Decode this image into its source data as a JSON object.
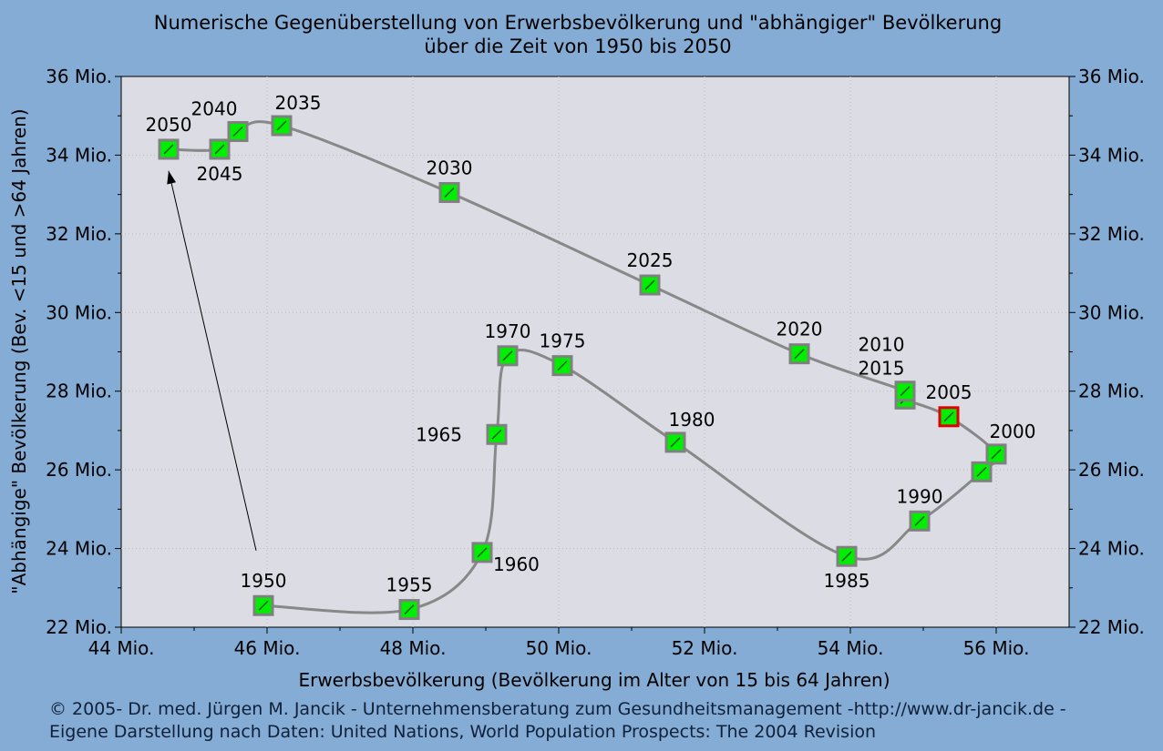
{
  "chart_data": {
    "type": "line",
    "title": "Numerische Gegenüberstellung von Erwerbsbevölkerung und \"abhängiger\" Bevölkerung",
    "subtitle": "über die Zeit von 1950 bis 2050",
    "xlabel": "Erwerbsbevölkerung (Bevölkerung im Alter von 15 bis 64 Jahren)",
    "ylabel": "\"Abhängige\" Bevölkerung (Bev. <15 und >64 Jahren)",
    "xlim": [
      44,
      57
    ],
    "ylim": [
      22,
      36
    ],
    "x_ticks": [
      44,
      46,
      48,
      50,
      52,
      54,
      56
    ],
    "y_ticks": [
      22,
      24,
      26,
      28,
      30,
      32,
      34,
      36
    ],
    "x_tick_labels": [
      "44 Mio.",
      "46 Mio.",
      "48 Mio.",
      "50 Mio.",
      "52 Mio.",
      "54 Mio.",
      "56 Mio."
    ],
    "y_tick_labels": [
      "22 Mio.",
      "24 Mio.",
      "26 Mio.",
      "28 Mio.",
      "30 Mio.",
      "32 Mio.",
      "34 Mio.",
      "36 Mio."
    ],
    "grid": true,
    "highlight_year": "2005",
    "colors": {
      "background": "#84acd4",
      "plot_area": "#dcdce4",
      "line": "#888888",
      "marker_fill": "#00ee00",
      "marker_border": "#808080",
      "highlight_border": "#e00000"
    },
    "points": [
      {
        "year": "1950",
        "x": 45.95,
        "y": 22.55
      },
      {
        "year": "1955",
        "x": 47.95,
        "y": 22.45
      },
      {
        "year": "1960",
        "x": 48.95,
        "y": 23.9
      },
      {
        "year": "1965",
        "x": 49.15,
        "y": 26.9
      },
      {
        "year": "1970",
        "x": 49.3,
        "y": 28.9
      },
      {
        "year": "1975",
        "x": 50.05,
        "y": 28.65
      },
      {
        "year": "1980",
        "x": 51.6,
        "y": 26.7
      },
      {
        "year": "1985",
        "x": 53.95,
        "y": 23.8
      },
      {
        "year": "1990",
        "x": 54.95,
        "y": 24.7
      },
      {
        "year": "1995",
        "x": 55.8,
        "y": 25.95
      },
      {
        "year": "2000",
        "x": 56.0,
        "y": 26.4
      },
      {
        "year": "2005",
        "x": 55.35,
        "y": 27.35
      },
      {
        "year": "2010",
        "x": 54.75,
        "y": 27.8
      },
      {
        "year": "2015",
        "x": 54.75,
        "y": 28.0
      },
      {
        "year": "2020",
        "x": 53.3,
        "y": 28.95
      },
      {
        "year": "2025",
        "x": 51.25,
        "y": 30.7
      },
      {
        "year": "2030",
        "x": 48.5,
        "y": 33.05
      },
      {
        "year": "2035",
        "x": 46.2,
        "y": 34.75
      },
      {
        "year": "2040",
        "x": 45.6,
        "y": 34.6
      },
      {
        "year": "2045",
        "x": 45.35,
        "y": 34.15
      },
      {
        "year": "2050",
        "x": 44.65,
        "y": 34.15
      }
    ],
    "labels": [
      {
        "text": "1950",
        "x": 45.95,
        "y": 22.55,
        "pos": "above"
      },
      {
        "text": "1955",
        "x": 47.95,
        "y": 22.45,
        "pos": "above"
      },
      {
        "text": "1960",
        "x": 48.95,
        "y": 23.9,
        "pos": "right-below"
      },
      {
        "text": "1965",
        "x": 49.15,
        "y": 26.9,
        "pos": "left"
      },
      {
        "text": "1970",
        "x": 49.3,
        "y": 28.9,
        "pos": "above"
      },
      {
        "text": "1975",
        "x": 50.05,
        "y": 28.65,
        "pos": "above"
      },
      {
        "text": "1980",
        "x": 51.6,
        "y": 26.7,
        "pos": "above-right"
      },
      {
        "text": "1985",
        "x": 53.95,
        "y": 23.8,
        "pos": "below"
      },
      {
        "text": "1990",
        "x": 54.95,
        "y": 24.7,
        "pos": "above"
      },
      {
        "text": "2000",
        "x": 56.0,
        "y": 26.4,
        "pos": "above-right"
      },
      {
        "text": "2005",
        "x": 55.35,
        "y": 27.35,
        "pos": "above"
      },
      {
        "text": "2010",
        "x": 54.75,
        "y": 28.0,
        "pos": "above-left-high"
      },
      {
        "text": "2015",
        "x": 54.75,
        "y": 28.0,
        "pos": "above-left"
      },
      {
        "text": "2020",
        "x": 53.3,
        "y": 28.95,
        "pos": "above"
      },
      {
        "text": "2025",
        "x": 51.25,
        "y": 30.7,
        "pos": "above"
      },
      {
        "text": "2030",
        "x": 48.5,
        "y": 33.05,
        "pos": "above"
      },
      {
        "text": "2035",
        "x": 46.2,
        "y": 34.75,
        "pos": "above-right"
      },
      {
        "text": "2040",
        "x": 45.6,
        "y": 34.6,
        "pos": "above-left"
      },
      {
        "text": "2045",
        "x": 45.35,
        "y": 34.15,
        "pos": "below"
      },
      {
        "text": "2050",
        "x": 44.65,
        "y": 34.15,
        "pos": "above"
      }
    ],
    "arrow": {
      "from": [
        45.85,
        23.95
      ],
      "to": [
        44.65,
        33.6
      ]
    }
  },
  "footer": {
    "line1": "© 2005-  Dr. med. Jürgen M. Jancik - Unternehmensberatung zum Gesundheitsmanagement -http://www.dr-jancik.de -",
    "line2": "Eigene Darstellung nach Daten: United Nations, World Population Prospects: The 2004 Revision"
  }
}
